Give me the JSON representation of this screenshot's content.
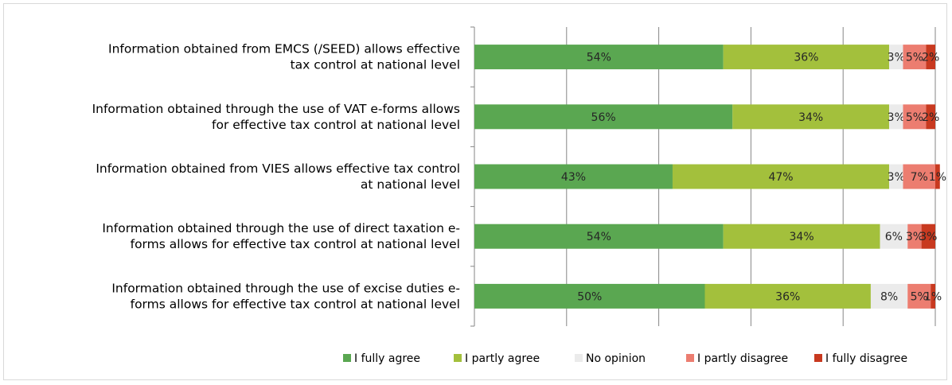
{
  "chart_data": {
    "type": "bar",
    "orientation": "horizontal",
    "stacked": true,
    "percent_stacked": true,
    "categories": [
      [
        "Information obtained from EMCS (/SEED) allows effective",
        "tax control at national level"
      ],
      [
        "Information obtained through the use of VAT e-forms allows",
        "for effective tax control at national level"
      ],
      [
        "Information obtained from VIES allows effective tax control",
        "at national level"
      ],
      [
        "Information obtained through the use of direct taxation e-",
        "forms allows for effective tax control at national level"
      ],
      [
        "Information obtained through the use of excise duties e-",
        "forms allows for effective tax control at national level"
      ]
    ],
    "series": [
      {
        "name": "I fully agree",
        "color": "#5aa751",
        "values": [
          54,
          56,
          43,
          54,
          50
        ],
        "labels": [
          "54%",
          "56%",
          "43%",
          "54%",
          "50%"
        ]
      },
      {
        "name": "I partly agree",
        "color": "#a3c03c",
        "values": [
          36,
          34,
          47,
          34,
          36
        ],
        "labels": [
          "36%",
          "34%",
          "47%",
          "34%",
          "36%"
        ]
      },
      {
        "name": "No opinion",
        "color": "#ebebeb",
        "values": [
          3,
          3,
          3,
          6,
          8
        ],
        "labels": [
          "3%",
          "3%",
          "3%",
          "6%",
          "8%"
        ]
      },
      {
        "name": "I partly disagree",
        "color": "#ec7d70",
        "values": [
          5,
          5,
          7,
          3,
          5
        ],
        "labels": [
          "5%",
          "5%",
          "7%",
          "3%",
          "5%"
        ]
      },
      {
        "name": "I fully disagree",
        "color": "#c8391f",
        "values": [
          2,
          2,
          1,
          3,
          1
        ],
        "labels": [
          "2%",
          "2%",
          "1%",
          "3%",
          "1%"
        ]
      }
    ],
    "xlim": [
      0,
      100
    ],
    "grid": true,
    "legend_position": "bottom",
    "title": "",
    "xlabel": "",
    "ylabel": ""
  }
}
